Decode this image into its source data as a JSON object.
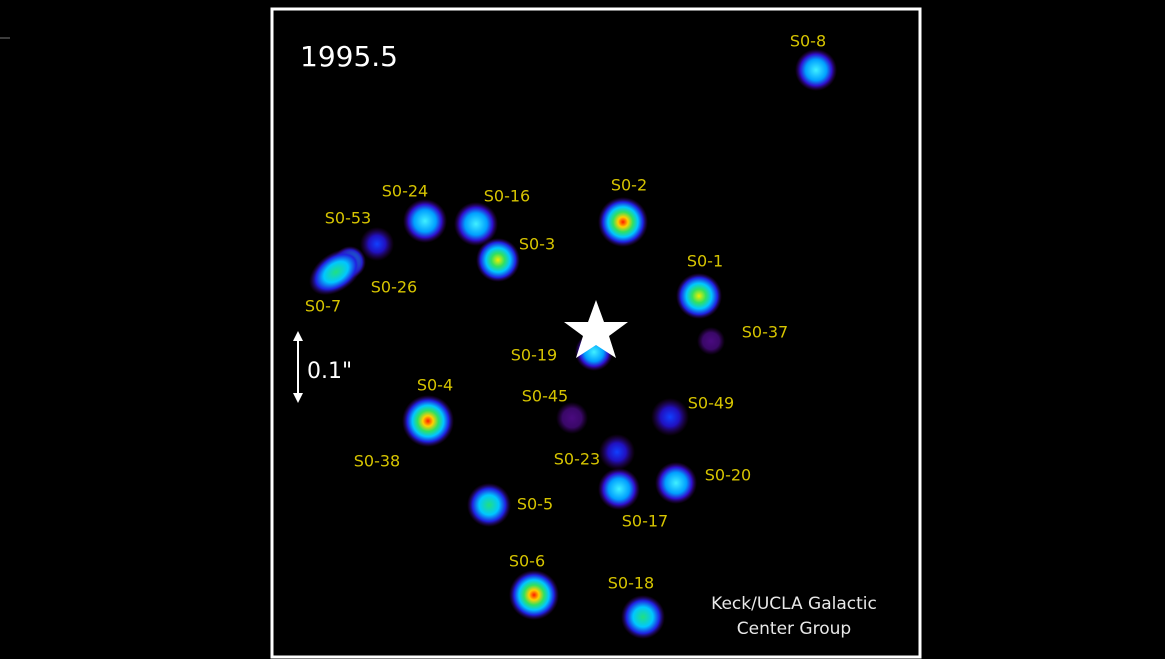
{
  "epoch": "1995.5",
  "scale_label": "0.1\"",
  "credit": [
    "Keck/UCLA Galactic",
    "Center Group"
  ],
  "stars": [
    {
      "label": "S0-8"
    },
    {
      "label": "S0-2"
    },
    {
      "label": "S0-24"
    },
    {
      "label": "S0-16"
    },
    {
      "label": "S0-3"
    },
    {
      "label": "S0-53"
    },
    {
      "label": "S0-26"
    },
    {
      "label": "S0-7"
    },
    {
      "label": "S0-1"
    },
    {
      "label": "S0-37"
    },
    {
      "label": "S0-19"
    },
    {
      "label": "S0-4"
    },
    {
      "label": "S0-38"
    },
    {
      "label": "S0-45"
    },
    {
      "label": "S0-49"
    },
    {
      "label": "S0-23"
    },
    {
      "label": "S0-17"
    },
    {
      "label": "S0-20"
    },
    {
      "label": "S0-5"
    },
    {
      "label": "S0-6"
    },
    {
      "label": "S0-18"
    }
  ]
}
